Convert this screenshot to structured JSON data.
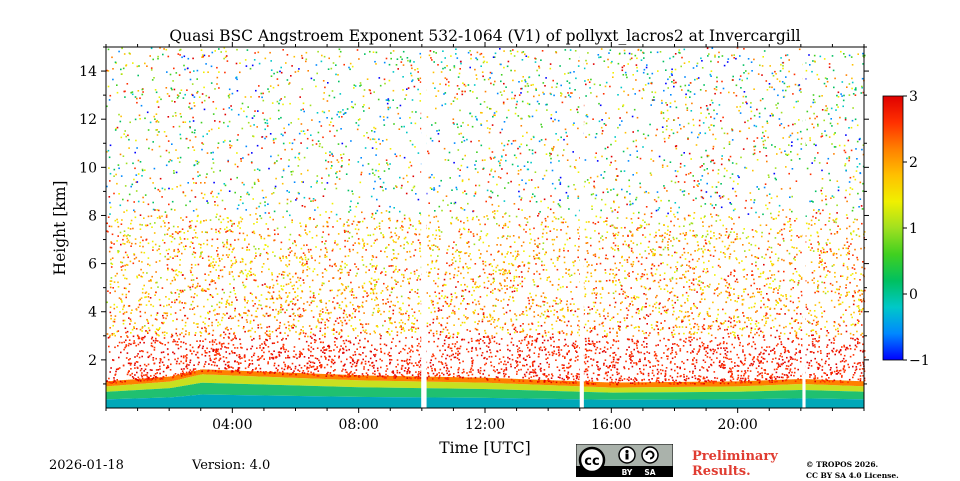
{
  "chart_data": {
    "type": "heatmap",
    "title": "Quasi BSC Angstroem Exponent 532-1064 (V1) of pollyxt_lacros2 at Invercargill",
    "xlabel": "Time [UTC]",
    "ylabel": "Height [km]",
    "xlim_hours": [
      0,
      24
    ],
    "ylim_km": [
      0,
      15
    ],
    "x_ticks": [
      {
        "hour": 4,
        "label": "04:00"
      },
      {
        "hour": 8,
        "label": "08:00"
      },
      {
        "hour": 12,
        "label": "12:00"
      },
      {
        "hour": 16,
        "label": "16:00"
      },
      {
        "hour": 20,
        "label": "20:00"
      }
    ],
    "y_ticks": [
      {
        "value": 2,
        "label": "2"
      },
      {
        "value": 4,
        "label": "4"
      },
      {
        "value": 6,
        "label": "6"
      },
      {
        "value": 8,
        "label": "8"
      },
      {
        "value": 10,
        "label": "10"
      },
      {
        "value": 12,
        "label": "12"
      },
      {
        "value": 14,
        "label": "14"
      }
    ],
    "colorbar": {
      "range": [
        -1,
        3
      ],
      "ticks": [
        {
          "value": 3,
          "label": "3"
        },
        {
          "value": 2,
          "label": "2"
        },
        {
          "value": 1,
          "label": "1"
        },
        {
          "value": 0,
          "label": "0"
        },
        {
          "value": -1,
          "label": "−1"
        }
      ],
      "colormap": [
        "#0000ff",
        "#0088ff",
        "#00c8c8",
        "#00c060",
        "#40d020",
        "#a0e020",
        "#f0f000",
        "#ffc000",
        "#ff8000",
        "#ff3000",
        "#e00000"
      ]
    },
    "data_gaps_hours": [
      [
        9.98,
        10.15
      ],
      [
        15.0,
        15.13
      ],
      [
        22.05,
        22.15
      ]
    ],
    "boundary_layer_top_km": [
      {
        "hour": 0.0,
        "height": 0.9
      },
      {
        "hour": 2.0,
        "height": 1.1
      },
      {
        "hour": 3.0,
        "height": 1.4
      },
      {
        "hour": 5.0,
        "height": 1.3
      },
      {
        "hour": 8.0,
        "height": 1.15
      },
      {
        "hour": 10.0,
        "height": 1.1
      },
      {
        "hour": 12.0,
        "height": 1.05
      },
      {
        "hour": 16.0,
        "height": 0.85
      },
      {
        "hour": 20.0,
        "height": 0.9
      },
      {
        "hour": 22.0,
        "height": 1.0
      },
      {
        "hour": 24.0,
        "height": 0.9
      }
    ],
    "dense_aerosol_layer_top_km": 8.0,
    "noise_top_km": 15.0
  },
  "footer": {
    "date": "2026-01-18",
    "version": "Version: 4.0",
    "preliminary_line1": "Preliminary",
    "preliminary_line2": "Results.",
    "credit_line1": "© TROPOS 2026.",
    "credit_line2": "CC BY SA 4.0 License.",
    "cc_label_by": "BY",
    "cc_label_sa": "SA",
    "cc_letters": "cc"
  },
  "colors": {
    "preliminary": "#e03c31"
  }
}
